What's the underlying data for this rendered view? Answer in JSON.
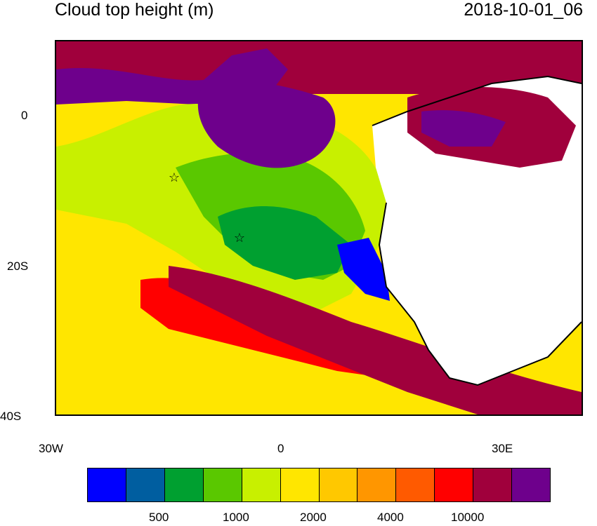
{
  "map": {
    "title": "Cloud top height (m)",
    "timestamp": "2018-10-01_06",
    "y_ticks": [
      "0",
      "20S",
      "40S"
    ],
    "x_ticks": [
      "30W",
      "0",
      "30E"
    ],
    "colorbar": {
      "colors": [
        "#0000ff",
        "#005ea0",
        "#00a030",
        "#5ac800",
        "#c8f000",
        "#ffe600",
        "#ffc800",
        "#ff9600",
        "#ff5a00",
        "#ff0000",
        "#a0003c",
        "#6e008c"
      ],
      "labels": [
        "500",
        "1000",
        "2000",
        "4000",
        "10000"
      ]
    },
    "markers": [
      "star",
      "star"
    ]
  }
}
